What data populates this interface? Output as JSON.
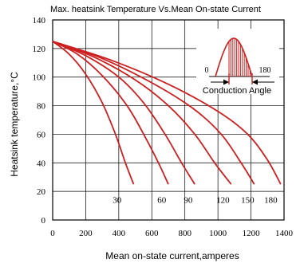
{
  "chart_data": {
    "type": "line",
    "title": "Max. heatsink Temperature Vs.Mean On-state Current",
    "xlabel": "Mean on-state current,amperes",
    "ylabel": "Heatsink temperature,°C",
    "xlim": [
      0,
      1400
    ],
    "ylim": [
      0,
      140
    ],
    "x_ticks": [
      "0",
      "200",
      "400",
      "600",
      "800",
      "1000",
      "1200",
      "1400"
    ],
    "y_ticks": [
      "0",
      "20",
      "40",
      "60",
      "80",
      "100",
      "120",
      "140"
    ],
    "grid": true,
    "line_color": "#cc1f1f",
    "series": [
      {
        "name": "30",
        "label_pos": [
          390,
          12
        ],
        "points": [
          [
            0,
            125
          ],
          [
            100,
            116
          ],
          [
            200,
            102
          ],
          [
            300,
            82
          ],
          [
            380,
            60
          ],
          [
            440,
            40
          ],
          [
            490,
            25
          ]
        ]
      },
      {
        "name": "60",
        "label_pos": [
          660,
          12
        ],
        "points": [
          [
            0,
            125
          ],
          [
            150,
            116
          ],
          [
            300,
            101
          ],
          [
            450,
            80
          ],
          [
            560,
            58
          ],
          [
            640,
            40
          ],
          [
            700,
            25
          ]
        ]
      },
      {
        "name": "90",
        "label_pos": [
          820,
          12
        ],
        "points": [
          [
            0,
            125
          ],
          [
            200,
            115
          ],
          [
            400,
            100
          ],
          [
            550,
            82
          ],
          [
            680,
            60
          ],
          [
            780,
            40
          ],
          [
            860,
            25
          ]
        ]
      },
      {
        "name": "120",
        "label_pos": [
          1030,
          12
        ],
        "points": [
          [
            0,
            125
          ],
          [
            250,
            114
          ],
          [
            500,
            98
          ],
          [
            700,
            80
          ],
          [
            860,
            60
          ],
          [
            980,
            40
          ],
          [
            1080,
            25
          ]
        ]
      },
      {
        "name": "150",
        "label_pos": [
          1180,
          12
        ],
        "points": [
          [
            0,
            125
          ],
          [
            300,
            113
          ],
          [
            600,
            96
          ],
          [
            850,
            78
          ],
          [
            1020,
            60
          ],
          [
            1140,
            40
          ],
          [
            1220,
            25
          ]
        ]
      },
      {
        "name": "180",
        "label_pos": [
          1320,
          12
        ],
        "points": [
          [
            0,
            125
          ],
          [
            350,
            112
          ],
          [
            700,
            95
          ],
          [
            1000,
            76
          ],
          [
            1180,
            60
          ],
          [
            1300,
            42
          ],
          [
            1380,
            25
          ]
        ]
      }
    ],
    "inset": {
      "left_label": "0",
      "right_label": "180",
      "caption": "Conduction Angle"
    }
  }
}
